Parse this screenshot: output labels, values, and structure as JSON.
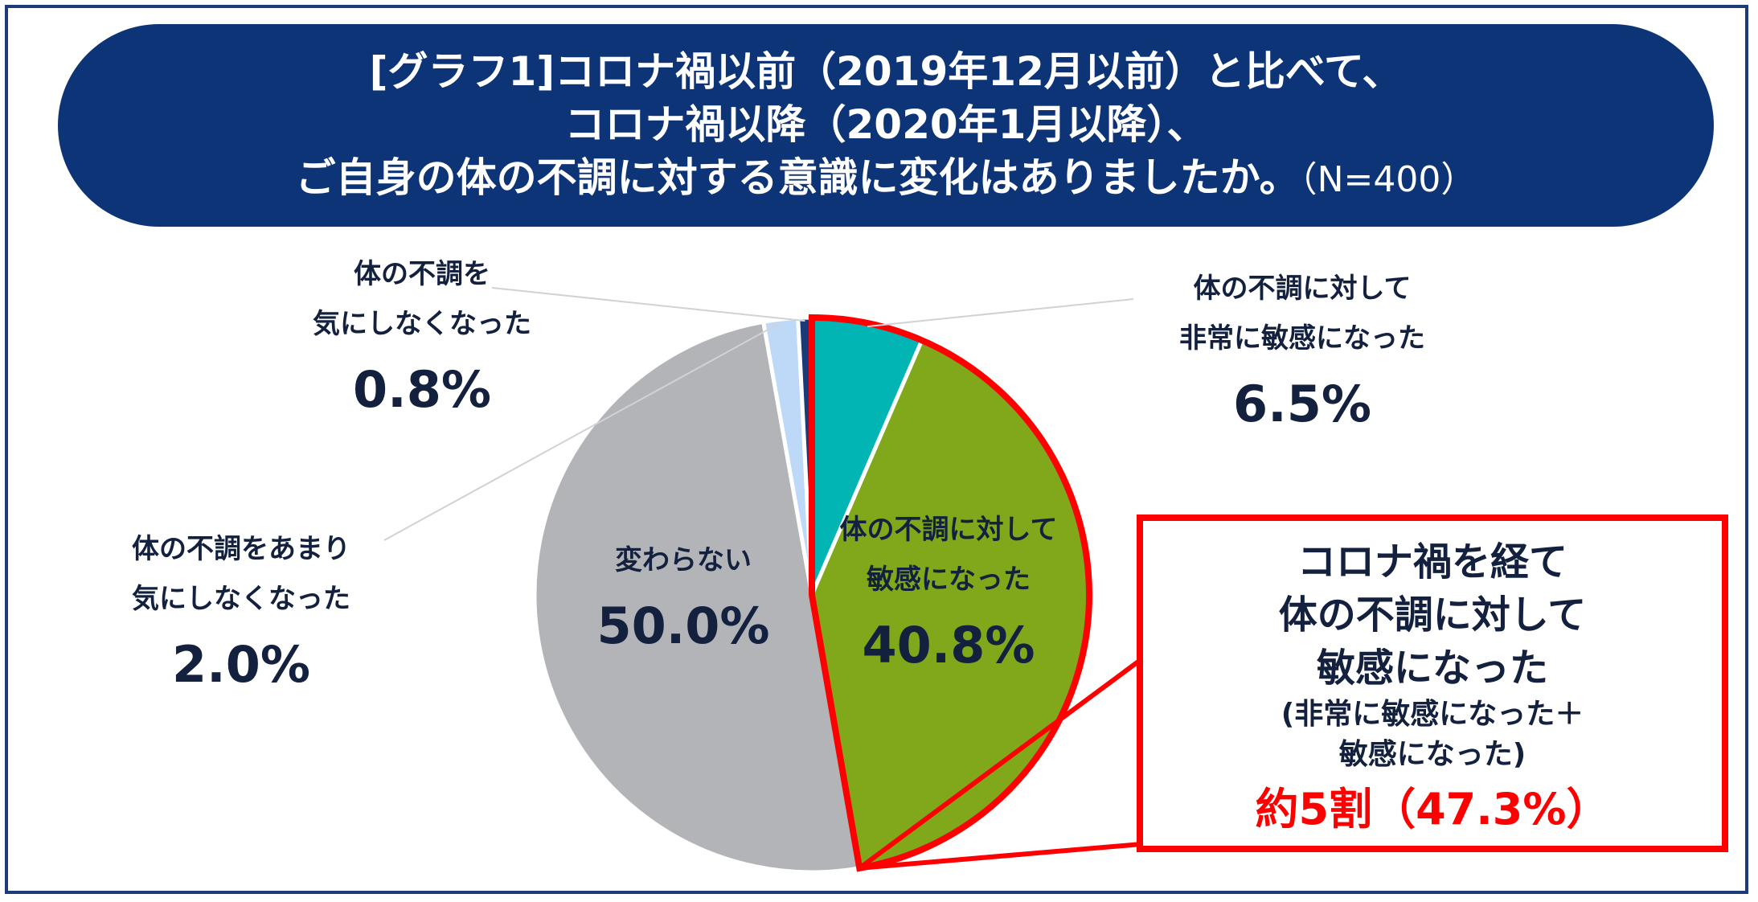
{
  "title": {
    "line1": "[グラフ1]コロナ禍以前（2019年12月以前）と比べて、",
    "line2": "コロナ禍以降（2020年1月以降）、",
    "line3": "ご自身の体の不調に対する意識に変化はありましたか。",
    "n": "（N=400）"
  },
  "chart_data": {
    "type": "pie",
    "title": "[グラフ1]コロナ禍以前（2019年12月以前）と比べて、コロナ禍以降（2020年1月以降）、ご自身の体の不調に対する意識に変化はありましたか。",
    "n": "N=400",
    "start": "12 o'clock",
    "direction": "clockwise",
    "slices": [
      {
        "label_line1": "体の不調に対して",
        "label_line2": "非常に敏感になった",
        "value": 6.5,
        "value_label": "6.5%",
        "color": "#00b5b3"
      },
      {
        "label_line1": "体の不調に対して",
        "label_line2": "敏感になった",
        "value": 40.8,
        "value_label": "40.8%",
        "color": "#80a81a"
      },
      {
        "label_line1": "変わらない",
        "label_line2": "",
        "value": 50.0,
        "value_label": "50.0%",
        "color": "#b2b4b8"
      },
      {
        "label_line1": "体の不調をあまり",
        "label_line2": "気にしなくなった",
        "value": 2.0,
        "value_label": "2.0%",
        "color": "#bed8f8"
      },
      {
        "label_line1": "体の不調を",
        "label_line2": "気にしなくなった",
        "value": 0.8,
        "value_label": "0.8%",
        "color": "#1b3a78"
      }
    ],
    "highlight": {
      "slices": [
        0,
        1
      ],
      "color": "#ff0000"
    }
  },
  "callout": {
    "line1": "コロナ禍を経て",
    "line2": "体の不調に対して",
    "line3": "敏感になった",
    "line4": "(非常に敏感になった＋",
    "line5": "敏感になった)",
    "line6": "約5割（47.3%）"
  }
}
